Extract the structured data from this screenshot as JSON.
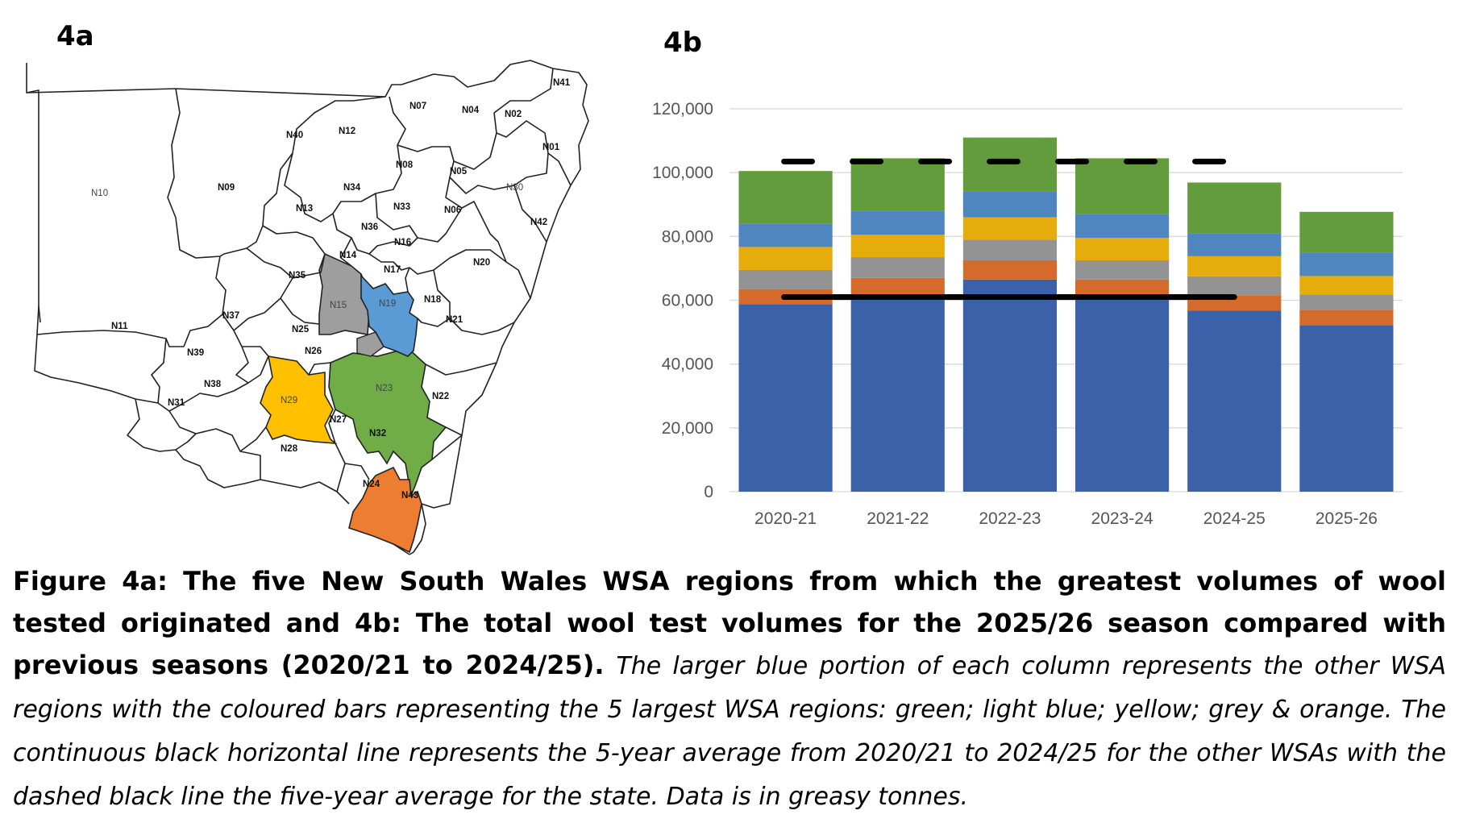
{
  "panels": {
    "a_label": "4a",
    "b_label": "4b"
  },
  "map": {
    "regions": [
      {
        "id": "N41",
        "color": null
      },
      {
        "id": "N07",
        "color": null
      },
      {
        "id": "N04",
        "color": null
      },
      {
        "id": "N02",
        "color": null
      },
      {
        "id": "N40",
        "color": null
      },
      {
        "id": "N12",
        "color": null
      },
      {
        "id": "N01",
        "color": null
      },
      {
        "id": "N08",
        "color": null
      },
      {
        "id": "N05",
        "color": null
      },
      {
        "id": "N10",
        "color": null
      },
      {
        "id": "N09",
        "color": null
      },
      {
        "id": "N34",
        "color": null
      },
      {
        "id": "N30",
        "color": null
      },
      {
        "id": "N13",
        "color": null
      },
      {
        "id": "N33",
        "color": null
      },
      {
        "id": "N06",
        "color": null
      },
      {
        "id": "N42",
        "color": null
      },
      {
        "id": "N36",
        "color": null
      },
      {
        "id": "N16",
        "color": null
      },
      {
        "id": "N14",
        "color": null
      },
      {
        "id": "N20",
        "color": null
      },
      {
        "id": "N17",
        "color": null
      },
      {
        "id": "N35",
        "color": null
      },
      {
        "id": "N15",
        "color": "#9e9e9e"
      },
      {
        "id": "N19",
        "color": "#5b9bd5"
      },
      {
        "id": "N18",
        "color": null
      },
      {
        "id": "N37",
        "color": null
      },
      {
        "id": "N11",
        "color": null
      },
      {
        "id": "N25",
        "color": null
      },
      {
        "id": "N21",
        "color": null
      },
      {
        "id": "N39",
        "color": null
      },
      {
        "id": "N26",
        "color": null
      },
      {
        "id": "N23",
        "color": "#70ad47"
      },
      {
        "id": "N29",
        "color": "#ffc000"
      },
      {
        "id": "N22",
        "color": null
      },
      {
        "id": "N38",
        "color": null
      },
      {
        "id": "N27",
        "color": null
      },
      {
        "id": "N31",
        "color": null
      },
      {
        "id": "N32",
        "color": null
      },
      {
        "id": "N28",
        "color": null
      },
      {
        "id": "N24",
        "color": "#ed7d31"
      },
      {
        "id": "N43",
        "color": null
      }
    ]
  },
  "chart_data": {
    "type": "bar",
    "stacked": true,
    "categories": [
      "2020-21",
      "2021-22",
      "2022-23",
      "2023-24",
      "2024-25",
      "2025-26"
    ],
    "ylim": [
      0,
      120000
    ],
    "yticks": [
      "0",
      "20,000",
      "40,000",
      "60,000",
      "80,000",
      "100,000",
      "120,000"
    ],
    "ytick_values": [
      0,
      20000,
      40000,
      60000,
      80000,
      100000,
      120000
    ],
    "grid": true,
    "series": [
      {
        "color": "#3b62a8",
        "values": [
          58800,
          61500,
          66500,
          61500,
          56800,
          52200
        ]
      },
      {
        "color": "#d56b2a",
        "values": [
          4700,
          5500,
          6000,
          5000,
          4800,
          4800
        ]
      },
      {
        "color": "#939393",
        "values": [
          6000,
          6500,
          6500,
          6000,
          5900,
          4800
        ]
      },
      {
        "color": "#e5ac0c",
        "values": [
          7200,
          7000,
          7000,
          7000,
          6300,
          5800
        ]
      },
      {
        "color": "#4f86c0",
        "values": [
          7200,
          7500,
          8000,
          7500,
          7200,
          7200
        ]
      },
      {
        "color": "#629c3d",
        "values": [
          16600,
          16500,
          17000,
          17500,
          15900,
          12900
        ]
      }
    ],
    "five_year_average_other_wsa": 61000,
    "five_year_average_state": 103500,
    "average_line_style": {
      "other_wsa": "solid",
      "state": "dashed",
      "color": "#000000"
    }
  },
  "caption": {
    "bold": "Figure 4a: The five New South Wales WSA regions from which the greatest volumes of wool tested originated and 4b: The total wool test volumes for the 2025/26 season compared with previous seasons (2020/21 to 2024/25).",
    "italic": "The larger blue portion of each column represents the other WSA regions with the coloured bars representing the 5 largest WSA regions: green; light blue; yellow; grey & orange. The continuous black horizontal line represents the 5-year average from 2020/21 to 2024/25 for the other WSAs with the dashed black line the five-year average for the state. Data is in greasy tonnes."
  }
}
